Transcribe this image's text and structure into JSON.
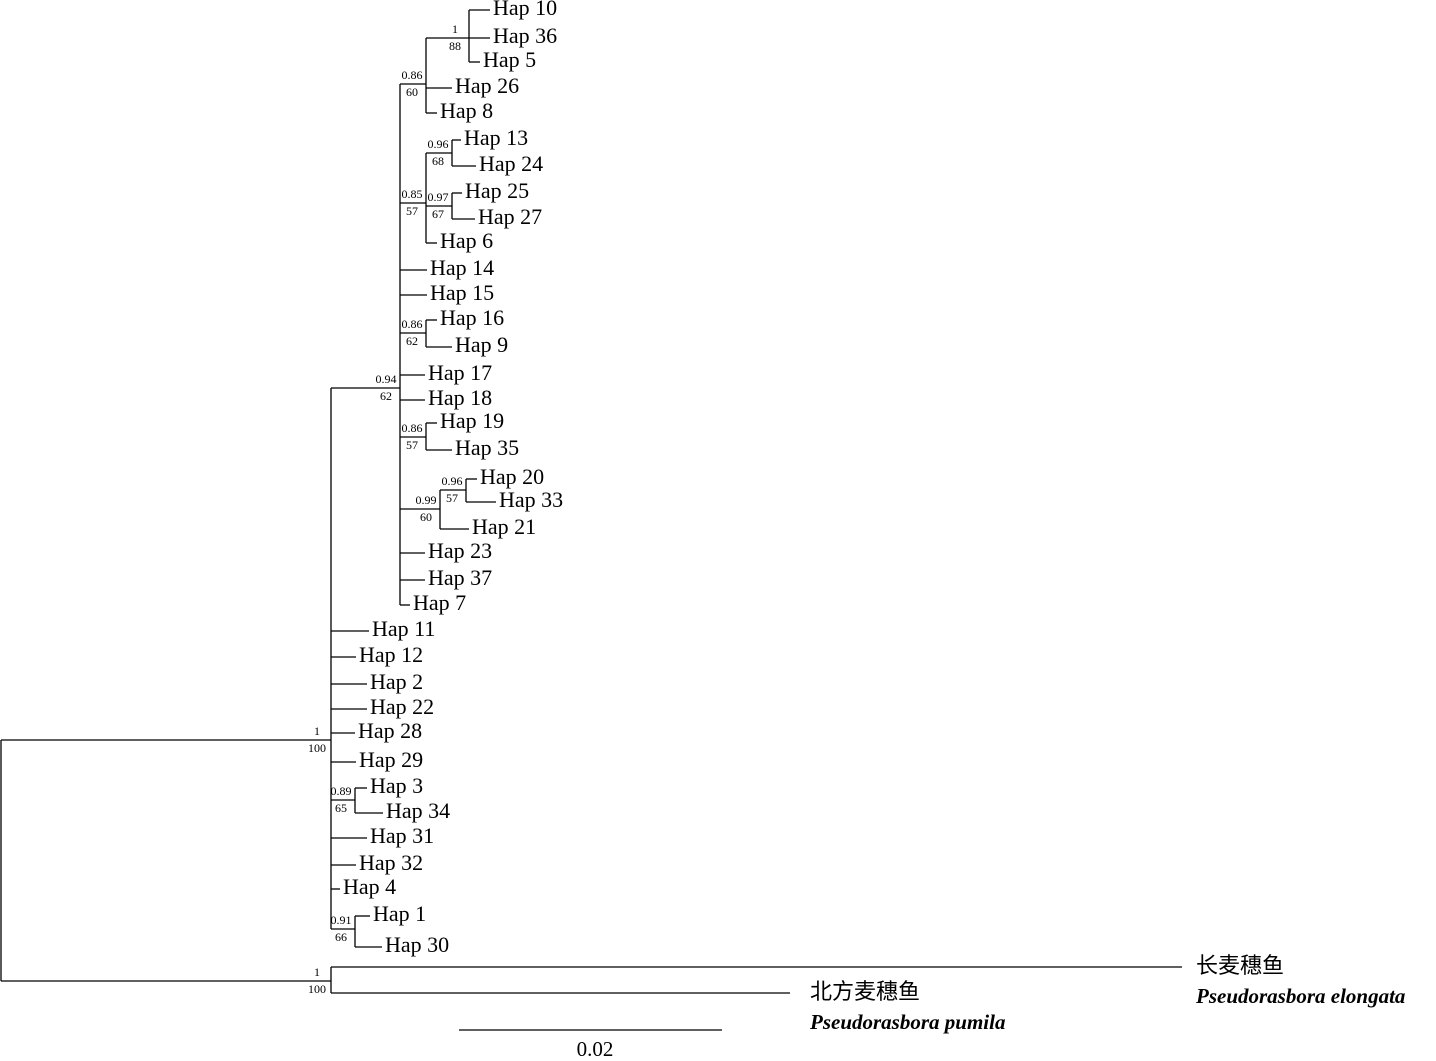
{
  "nodes": [
    {
      "posterior": 1,
      "bootstrap": 100
    },
    {
      "posterior": 1,
      "bootstrap": 100
    },
    {
      "posterior": 0.94,
      "bootstrap": 62
    },
    {
      "posterior": 0.86,
      "bootstrap": 60
    },
    {
      "posterior": 1,
      "bootstrap": 88
    },
    {
      "posterior": 0.85,
      "bootstrap": 57
    },
    {
      "posterior": 0.96,
      "bootstrap": 68
    },
    {
      "posterior": 0.97,
      "bootstrap": 67
    },
    {
      "posterior": 0.86,
      "bootstrap": 62
    },
    {
      "posterior": 0.86,
      "bootstrap": 57
    },
    {
      "posterior": 0.99,
      "bootstrap": 60
    },
    {
      "posterior": 0.96,
      "bootstrap": 57
    },
    {
      "posterior": 0.89,
      "bootstrap": 65
    },
    {
      "posterior": 0.91,
      "bootstrap": 66
    }
  ],
  "taxa": [
    "Hap 10",
    "Hap 36",
    "Hap 5",
    "Hap 26",
    "Hap 8",
    "Hap 13",
    "Hap 24",
    "Hap 25",
    "Hap 27",
    "Hap 6",
    "Hap 14",
    "Hap 15",
    "Hap 16",
    "Hap 9",
    "Hap 17",
    "Hap 18",
    "Hap 19",
    "Hap 35",
    "Hap 20",
    "Hap 33",
    "Hap 21",
    "Hap 23",
    "Hap 37",
    "Hap 7",
    "Hap 11",
    "Hap 12",
    "Hap 2",
    "Hap 22",
    "Hap 28",
    "Hap 29",
    "Hap 3",
    "Hap 34",
    "Hap 31",
    "Hap 32",
    "Hap 4",
    "Hap 1",
    "Hap 30"
  ],
  "outgroups": [
    {
      "name": "长麦穗鱼",
      "latin": "Pseudorasbora elongata"
    },
    {
      "name": "北方麦穗鱼",
      "latin": "Pseudorasbora pumila"
    }
  ],
  "scale_bar": {
    "label": "0.02"
  }
}
